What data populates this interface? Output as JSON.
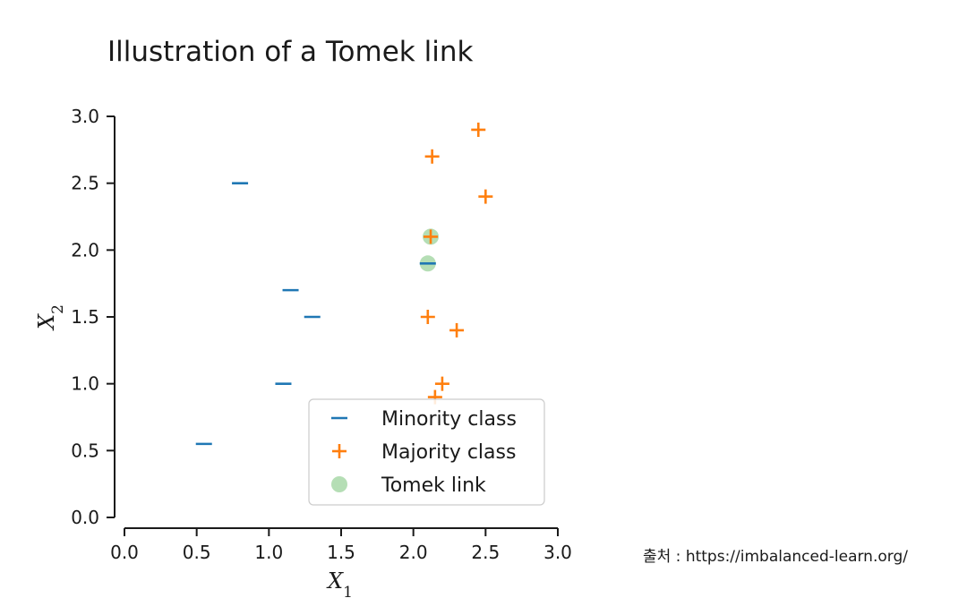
{
  "chart_data": {
    "type": "scatter",
    "title": "Illustration of a Tomek link",
    "xlabel": "X",
    "xlabel_sub": "1",
    "ylabel": "X",
    "ylabel_sub": "2",
    "xlim": [
      0,
      3
    ],
    "ylim": [
      0,
      3
    ],
    "xticks": [
      "0.0",
      "0.5",
      "1.0",
      "1.5",
      "2.0",
      "2.5",
      "3.0"
    ],
    "yticks": [
      "0.0",
      "0.5",
      "1.0",
      "1.5",
      "2.0",
      "2.5",
      "3.0"
    ],
    "grid": false,
    "legend_position": "bottom-center",
    "series": [
      {
        "name": "Minority class",
        "marker": "minus",
        "color": "#1f77b4",
        "points": [
          [
            0.8,
            2.5
          ],
          [
            1.15,
            1.7
          ],
          [
            1.3,
            1.5
          ],
          [
            1.1,
            1.0
          ],
          [
            0.55,
            0.55
          ],
          [
            2.1,
            1.9
          ]
        ]
      },
      {
        "name": "Majority class",
        "marker": "plus",
        "color": "#ff7f0e",
        "points": [
          [
            2.45,
            2.9
          ],
          [
            2.13,
            2.7
          ],
          [
            2.5,
            2.4
          ],
          [
            2.12,
            2.1
          ],
          [
            2.1,
            1.5
          ],
          [
            2.3,
            1.4
          ],
          [
            2.2,
            1.0
          ],
          [
            2.15,
            0.9
          ]
        ]
      },
      {
        "name": "Tomek link",
        "marker": "circle",
        "color": "#2ca02c",
        "points": [
          [
            2.12,
            2.1
          ],
          [
            2.1,
            1.9
          ]
        ]
      }
    ]
  },
  "source_note": "출처 : https://imbalanced-learn.org/"
}
